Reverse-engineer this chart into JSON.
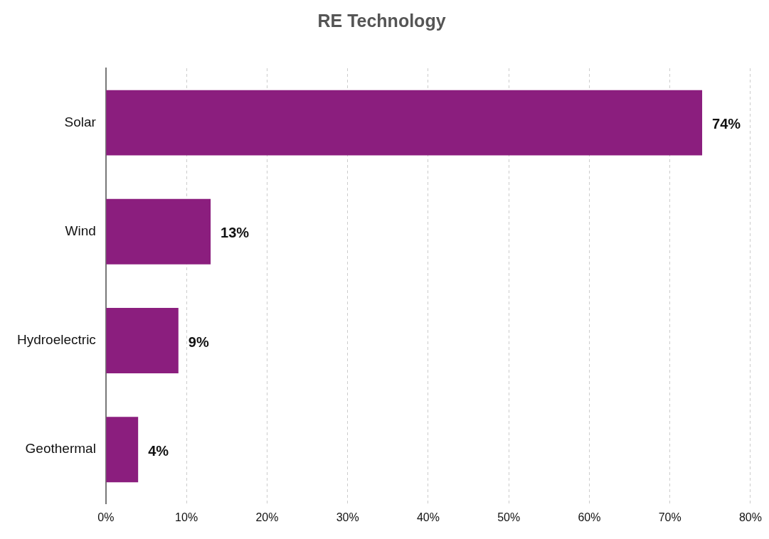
{
  "chart_data": {
    "type": "bar",
    "orientation": "horizontal",
    "title": "RE Technology",
    "categories": [
      "Solar",
      "Wind",
      "Hydroelectric",
      "Geothermal"
    ],
    "values": [
      74,
      13,
      9,
      4
    ],
    "value_labels": [
      "74%",
      "13%",
      "9%",
      "4%"
    ],
    "color": "#8b1e7e",
    "xlim": [
      0,
      80
    ],
    "xticks": [
      {
        "value": 0,
        "label": "0%"
      },
      {
        "value": 10,
        "label": "10%"
      },
      {
        "value": 20,
        "label": "20%"
      },
      {
        "value": 30,
        "label": "30%"
      },
      {
        "value": 40,
        "label": "40%"
      },
      {
        "value": 50,
        "label": "50%"
      },
      {
        "value": 60,
        "label": "60%"
      },
      {
        "value": 70,
        "label": "70%"
      },
      {
        "value": 80,
        "label": "80%"
      }
    ],
    "grid": "x",
    "legend": false
  }
}
